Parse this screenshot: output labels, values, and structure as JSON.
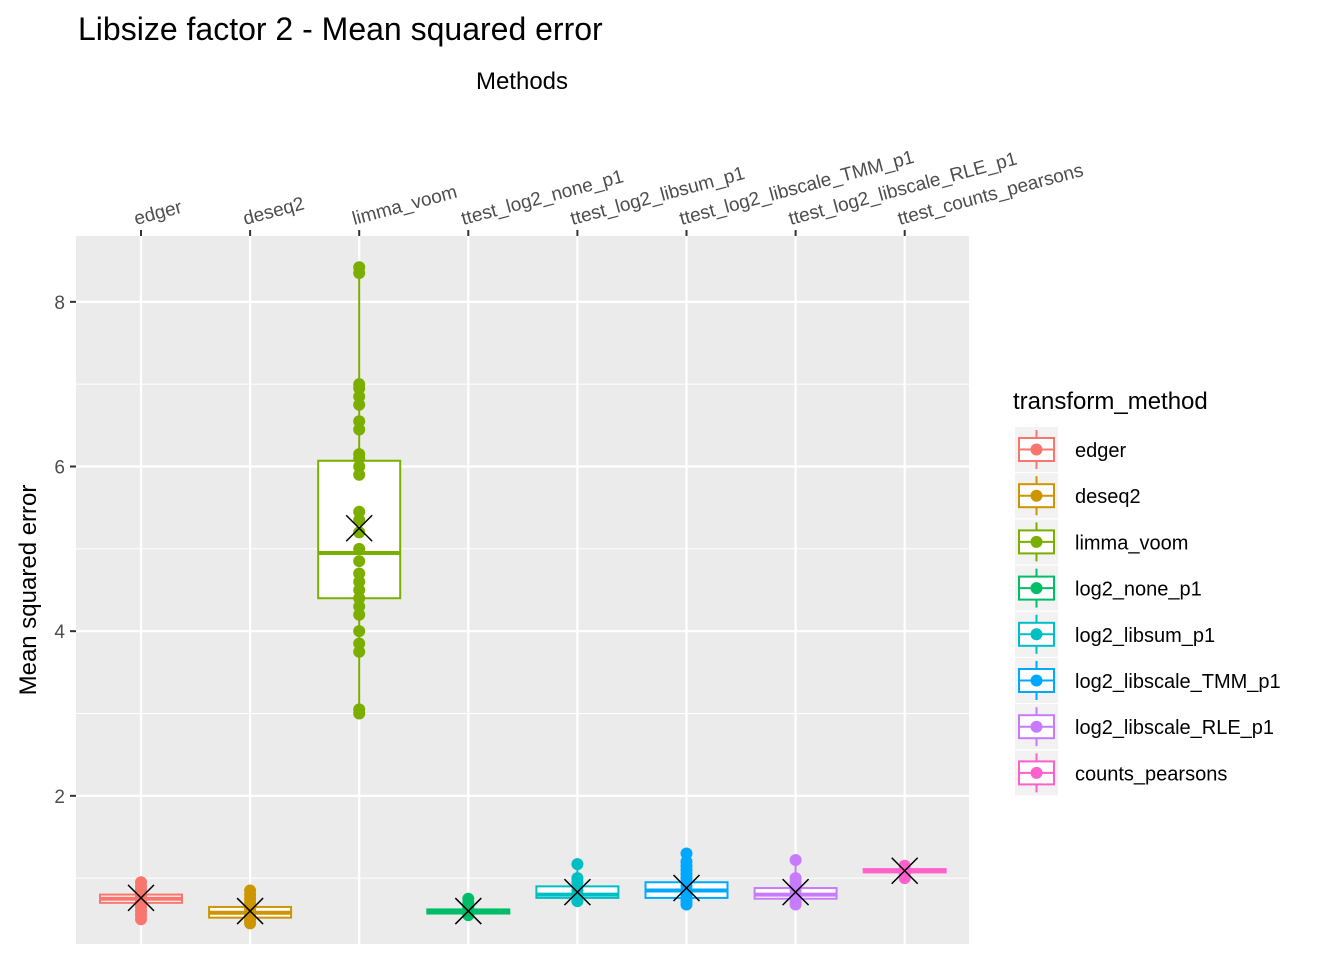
{
  "chart_data": {
    "type": "box",
    "title": "Libsize factor 2 - Mean squared error",
    "xlabel": "Methods",
    "ylabel": "Mean squared error",
    "ylim": [
      0.2,
      8.8
    ],
    "y_ticks": [
      2,
      4,
      6,
      8
    ],
    "grid": true,
    "x_axis_position": "top",
    "legend": {
      "title": "transform_method",
      "placement": "right"
    },
    "categories": [
      "edger",
      "deseq2",
      "limma_voom",
      "ttest_log2_none_p1",
      "ttest_log2_libsum_p1",
      "ttest_log2_libscale_TMM_p1",
      "ttest_log2_libscale_RLE_p1",
      "ttest_counts_pearsons"
    ],
    "series": [
      {
        "name": "edger",
        "color": "#F8766D",
        "q1": 0.7,
        "median": 0.75,
        "q3": 0.8,
        "mean": 0.76,
        "points": [
          0.5,
          0.55,
          0.6,
          0.65,
          0.68,
          0.7,
          0.72,
          0.75,
          0.78,
          0.8,
          0.83,
          0.86,
          0.9,
          0.95
        ]
      },
      {
        "name": "deseq2",
        "color": "#CD9600",
        "q1": 0.52,
        "median": 0.58,
        "q3": 0.65,
        "mean": 0.6,
        "points": [
          0.45,
          0.48,
          0.5,
          0.53,
          0.56,
          0.58,
          0.6,
          0.63,
          0.66,
          0.7,
          0.75,
          0.8,
          0.85
        ]
      },
      {
        "name": "limma_voom",
        "color": "#7CAE00",
        "q1": 4.4,
        "median": 4.95,
        "q3": 6.07,
        "mean": 5.25,
        "points": [
          3.0,
          3.05,
          3.75,
          3.85,
          4.0,
          4.2,
          4.3,
          4.4,
          4.5,
          4.6,
          4.7,
          4.85,
          5.0,
          5.2,
          5.35,
          5.45,
          5.9,
          6.0,
          6.1,
          6.15,
          6.45,
          6.55,
          6.75,
          6.85,
          6.95,
          7.0,
          8.35,
          8.42
        ]
      },
      {
        "name": "log2_none_p1",
        "color": "#00BE67",
        "q1": 0.57,
        "median": 0.59,
        "q3": 0.62,
        "mean": 0.6,
        "points": [
          0.55,
          0.57,
          0.6,
          0.63,
          0.66,
          0.7,
          0.75
        ]
      },
      {
        "name": "log2_libsum_p1",
        "color": "#00BFC4",
        "q1": 0.76,
        "median": 0.8,
        "q3": 0.9,
        "mean": 0.83,
        "points": [
          0.72,
          0.76,
          0.8,
          0.85,
          0.9,
          0.95,
          1.0,
          1.17
        ]
      },
      {
        "name": "log2_libscale_TMM_p1",
        "color": "#00A9FF",
        "q1": 0.76,
        "median": 0.85,
        "q3": 0.95,
        "mean": 0.88,
        "points": [
          0.68,
          0.72,
          0.76,
          0.8,
          0.85,
          0.9,
          0.95,
          1.0,
          1.05,
          1.1,
          1.15,
          1.2,
          1.3
        ]
      },
      {
        "name": "log2_libscale_RLE_p1",
        "color": "#C77CFF",
        "q1": 0.75,
        "median": 0.8,
        "q3": 0.88,
        "mean": 0.83,
        "points": [
          0.68,
          0.72,
          0.76,
          0.8,
          0.85,
          0.9,
          0.95,
          1.0,
          1.22
        ]
      },
      {
        "name": "counts_pearsons",
        "color": "#FF61CC",
        "q1": 1.07,
        "median": 1.09,
        "q3": 1.11,
        "mean": 1.09,
        "points": [
          1.0,
          1.05,
          1.1,
          1.15
        ]
      }
    ]
  }
}
